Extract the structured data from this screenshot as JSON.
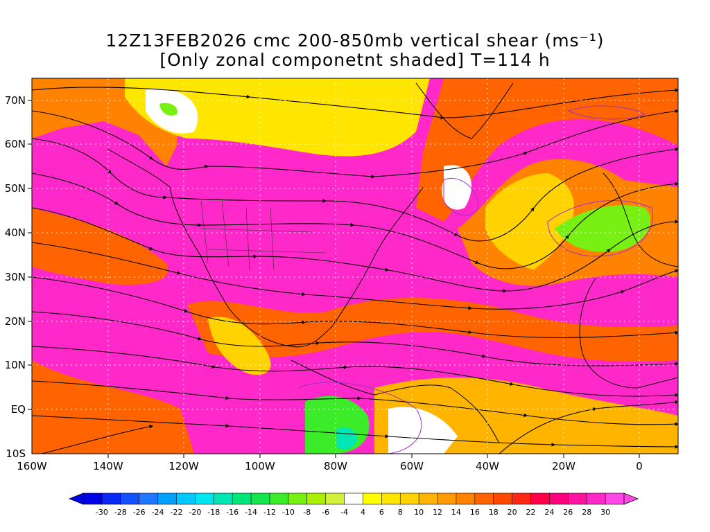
{
  "title": {
    "line1": "12Z13FEB2026 cmc 200-850mb vertical shear (ms⁻¹)",
    "line2": "[Only zonal componetnt shaded] T=114 h"
  },
  "axes": {
    "lat_labels": [
      "70N",
      "60N",
      "50N",
      "40N",
      "30N",
      "20N",
      "10N",
      "EQ",
      "10S"
    ],
    "lon_labels": [
      "160W",
      "140W",
      "120W",
      "100W",
      "80W",
      "60W",
      "40W",
      "20W",
      "0"
    ]
  },
  "colorbar": {
    "tick_labels": [
      "-30",
      "-28",
      "-26",
      "-24",
      "-22",
      "-20",
      "-18",
      "-16",
      "-14",
      "-12",
      "-10",
      "-8",
      "-6",
      "-4",
      "4",
      "6",
      "8",
      "10",
      "12",
      "14",
      "16",
      "18",
      "20",
      "22",
      "24",
      "26",
      "28",
      "30"
    ],
    "colors": [
      "#0000e6",
      "#0a28f5",
      "#1450ff",
      "#1e78ff",
      "#00a0ff",
      "#00c8ff",
      "#00e6f0",
      "#00e6b4",
      "#00e678",
      "#14e650",
      "#3cec28",
      "#78f014",
      "#aaf000",
      "#d2f03c",
      "#ffffff",
      "#ffff00",
      "#ffe600",
      "#ffd200",
      "#ffb400",
      "#ff9b00",
      "#ff8200",
      "#ff6400",
      "#ff4b00",
      "#ff2814",
      "#ff0046",
      "#ff007d",
      "#ff14a0",
      "#ff28c8",
      "#ff46e6"
    ]
  },
  "chart_data": {
    "type": "heatmap",
    "variable": "200-850mb vertical shear, zonal component",
    "units": "ms⁻¹",
    "lon_range": [
      -160,
      10
    ],
    "lat_range": [
      -10,
      75
    ],
    "contour_levels": [
      -30,
      -28,
      -26,
      -24,
      -22,
      -20,
      -18,
      -16,
      -14,
      -12,
      -10,
      -8,
      -6,
      -4,
      4,
      6,
      8,
      10,
      12,
      14,
      16,
      18,
      20,
      22,
      24,
      26,
      28,
      30
    ],
    "overlay": "streamlines of shear vector",
    "grid": true
  }
}
